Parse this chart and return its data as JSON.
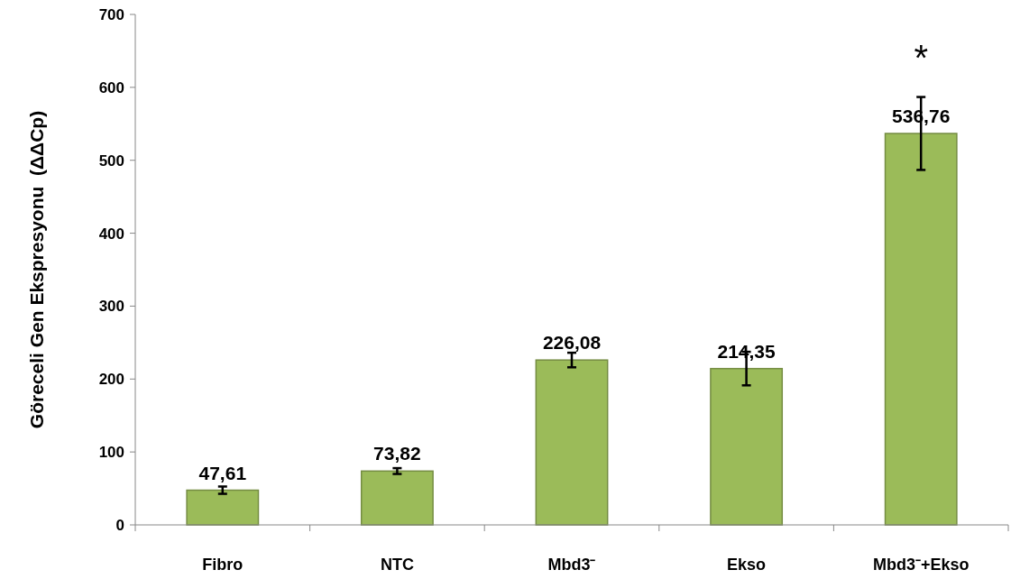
{
  "chart_data": {
    "type": "bar",
    "ylabel": "Göreceli Gen Ekspresyonu  (ΔΔCp)",
    "categories": [
      "Fibro",
      "NTC",
      "Mbd3⁻",
      "Ekso",
      "Mbd3⁻+Ekso"
    ],
    "values": [
      47.61,
      73.82,
      226.08,
      214.35,
      536.76
    ],
    "errors": [
      5,
      4,
      10,
      23,
      50
    ],
    "value_labels": [
      "47,61",
      "73,82",
      "226,08",
      "214,35",
      "536,76"
    ],
    "color": "#9bbb59",
    "ylim": [
      0,
      700
    ],
    "yticks": [
      0,
      100,
      200,
      300,
      400,
      500,
      600,
      700
    ],
    "grid": false,
    "annotations": [
      "*"
    ]
  }
}
